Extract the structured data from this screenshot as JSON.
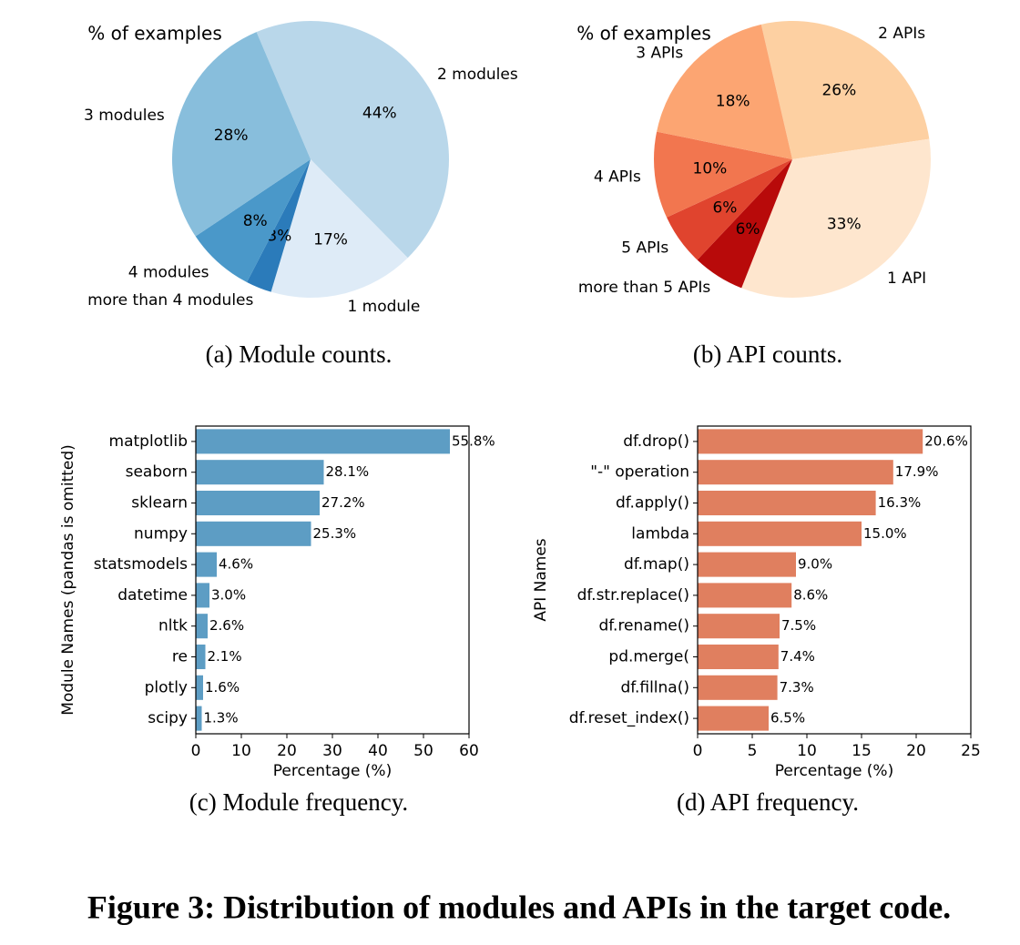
{
  "chart_data": [
    {
      "type": "pie",
      "title": "% of examples",
      "caption": "(a)  Module counts.",
      "categories": [
        "2 modules",
        "1 module",
        "more than 4 modules",
        "4 modules",
        "3 modules"
      ],
      "values": [
        44,
        17,
        3,
        8,
        28
      ],
      "value_labels": [
        "44%",
        "17%",
        "3%",
        "8%",
        "28%"
      ],
      "colors": [
        "#b9d7ea",
        "#deebf7",
        "#2b7bba",
        "#4a98c9",
        "#88bedc"
      ]
    },
    {
      "type": "pie",
      "title": "% of examples",
      "caption": "(b)  API counts.",
      "categories": [
        "2 APIs",
        "1 API",
        "more than 5 APIs",
        "5 APIs",
        "4 APIs",
        "3 APIs"
      ],
      "values": [
        26,
        33,
        6,
        6,
        10,
        18
      ],
      "value_labels": [
        "26%",
        "33%",
        "6%",
        "6%",
        "10%",
        "18%"
      ],
      "colors": [
        "#fdd0a2",
        "#fee6ce",
        "#b80a0a",
        "#e0442e",
        "#f2764f",
        "#fca572"
      ]
    },
    {
      "type": "hbar",
      "caption": "(c)  Module frequency.",
      "xlabel": "Percentage (%)",
      "ylabel": "Module Names (pandas is omitted)",
      "categories": [
        "matplotlib",
        "seaborn",
        "sklearn",
        "numpy",
        "statsmodels",
        "datetime",
        "nltk",
        "re",
        "plotly",
        "scipy"
      ],
      "values": [
        55.8,
        28.1,
        27.2,
        25.3,
        4.6,
        3.0,
        2.6,
        2.1,
        1.6,
        1.3
      ],
      "value_labels": [
        "55.8%",
        "28.1%",
        "27.2%",
        "25.3%",
        "4.6%",
        "3.0%",
        "2.6%",
        "2.1%",
        "1.6%",
        "1.3%"
      ],
      "color": "#5d9dc4",
      "xlim": [
        0,
        60
      ],
      "xticks": [
        0,
        10,
        20,
        30,
        40,
        50,
        60
      ]
    },
    {
      "type": "hbar",
      "caption": "(d)  API frequency.",
      "xlabel": "Percentage (%)",
      "ylabel": "API Names",
      "categories": [
        "df.drop()",
        "\"-\" operation",
        "df.apply()",
        "lambda",
        "df.map()",
        "df.str.replace()",
        "df.rename()",
        "pd.merge(",
        "df.fillna()",
        "df.reset_index()"
      ],
      "values": [
        20.6,
        17.9,
        16.3,
        15.0,
        9.0,
        8.6,
        7.5,
        7.4,
        7.3,
        6.5
      ],
      "value_labels": [
        "20.6%",
        "17.9%",
        "16.3%",
        "15.0%",
        "9.0%",
        "8.6%",
        "7.5%",
        "7.4%",
        "7.3%",
        "6.5%"
      ],
      "color": "#e07f5f",
      "xlim": [
        0,
        25
      ],
      "xticks": [
        0,
        5,
        10,
        15,
        20,
        25
      ]
    }
  ],
  "figure_caption": "Figure 3: Distribution of modules and APIs in the target code."
}
